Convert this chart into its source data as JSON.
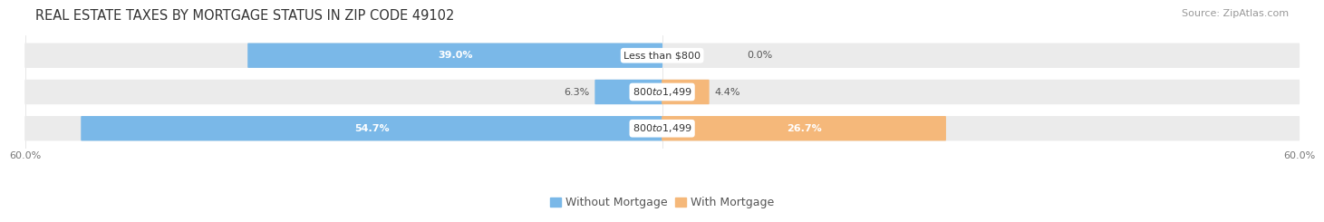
{
  "title": "REAL ESTATE TAXES BY MORTGAGE STATUS IN ZIP CODE 49102",
  "source": "Source: ZipAtlas.com",
  "rows": [
    {
      "label": "Less than $800",
      "without_mortgage": 39.0,
      "with_mortgage": 0.0
    },
    {
      "label": "$800 to $1,499",
      "without_mortgage": 6.3,
      "with_mortgage": 4.4
    },
    {
      "label": "$800 to $1,499",
      "without_mortgage": 54.7,
      "with_mortgage": 26.7
    }
  ],
  "x_max": 60.0,
  "x_min": -60.0,
  "color_without": "#7ab8e8",
  "color_with": "#f5b87a",
  "bar_bg_color": "#ebebeb",
  "title_fontsize": 10.5,
  "source_fontsize": 8,
  "tick_fontsize": 8,
  "label_fontsize": 8,
  "value_fontsize": 8,
  "legend_fontsize": 9,
  "x_ticks": [
    -60.0,
    60.0
  ],
  "x_tick_labels": [
    "60.0%",
    "60.0%"
  ]
}
